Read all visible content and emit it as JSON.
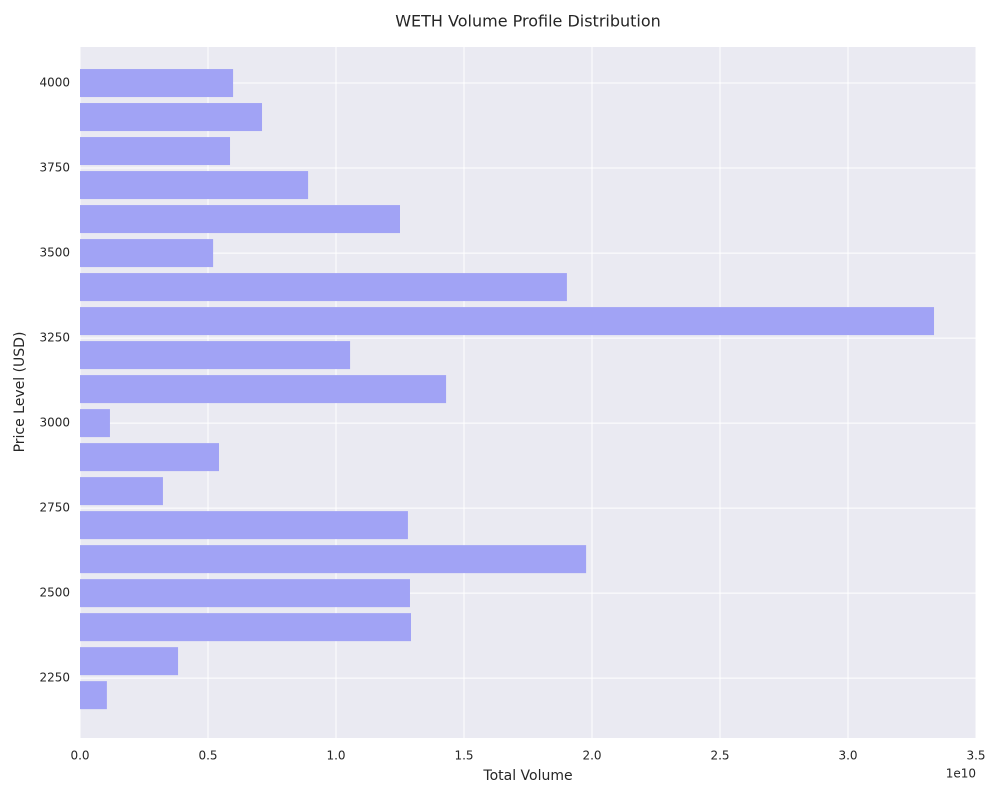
{
  "chart_data": {
    "type": "bar",
    "orientation": "horizontal",
    "title": "WETH Volume Profile Distribution",
    "x_label": "Total Volume",
    "y_label": "Price Level (USD)",
    "x_offset_label": "1e10",
    "y": [
      4000,
      3900,
      3800,
      3700,
      3600,
      3500,
      3400,
      3300,
      3200,
      3100,
      3000,
      2900,
      2800,
      2700,
      2600,
      2500,
      2400,
      2300,
      2200
    ],
    "values": [
      5980000000,
      7110000000,
      5860000000,
      8910000000,
      12500000000,
      5200000000,
      19020000000,
      33360000000,
      10550000000,
      14300000000,
      1170000000,
      5430000000,
      3240000000,
      12810000000,
      19770000000,
      12890000000,
      12930000000,
      3830000000,
      1050000000
    ],
    "color": "#a1a3f5",
    "xlim": [
      0,
      35000000000
    ],
    "xticks": [
      {
        "value": 0,
        "label": "0.0"
      },
      {
        "value": 5000000000,
        "label": "0.5"
      },
      {
        "value": 10000000000,
        "label": "1.0"
      },
      {
        "value": 15000000000,
        "label": "1.5"
      },
      {
        "value": 20000000000,
        "label": "2.0"
      },
      {
        "value": 25000000000,
        "label": "2.5"
      },
      {
        "value": 30000000000,
        "label": "3.0"
      },
      {
        "value": 35000000000,
        "label": "3.5"
      }
    ],
    "ylim": [
      2074,
      4106
    ],
    "yticks": [
      2250,
      2500,
      2750,
      3000,
      3250,
      3500,
      3750,
      4000
    ],
    "grid": true
  }
}
